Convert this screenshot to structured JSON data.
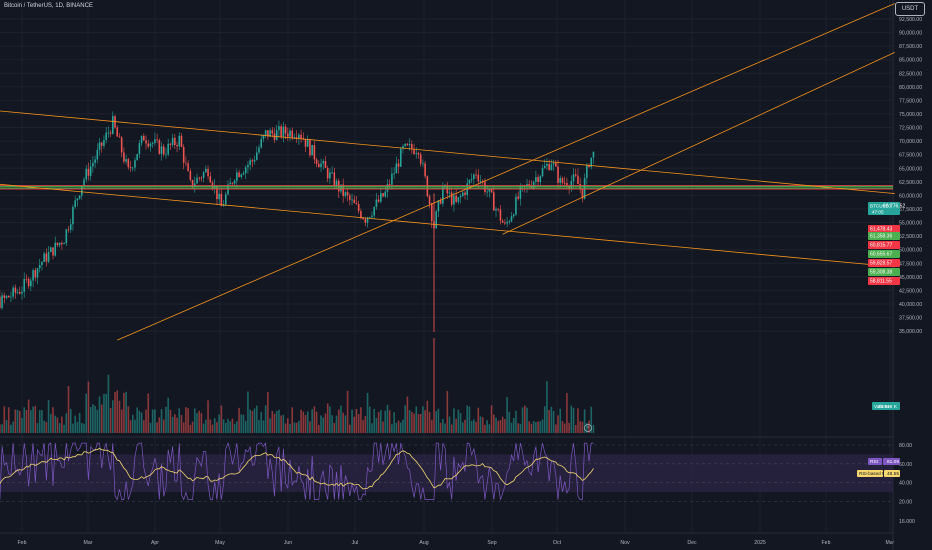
{
  "header": {
    "symbol_title": "Bitcoin / TetherUS, 1D, BINANCE",
    "currency_label": "USDT"
  },
  "colors": {
    "background": "#131722",
    "up": "#26a69a",
    "down": "#ef5350",
    "trendline": "#f7931a",
    "support": "#4caf50",
    "resistance": "#f23645",
    "rsi": "#7e57c2",
    "rsi_ma": "#f5d76e",
    "rsi_band": "#2a2445"
  },
  "chart_data": [
    {
      "type": "candlestick",
      "title": "Bitcoin / TetherUS, 1D, BINANCE",
      "x_ticks": [
        "Feb",
        "Mar",
        "Apr",
        "May",
        "Jun",
        "Jul",
        "Aug",
        "Sep",
        "Oct",
        "Nov",
        "Dec",
        "2025",
        "Feb",
        "Mar"
      ],
      "y_ticks": [
        "92,500.00",
        "90,000.00",
        "87,500.00",
        "85,000.00",
        "82,500.00",
        "80,000.00",
        "77,500.00",
        "75,000.00",
        "72,500.00",
        "70,000.00",
        "67,500.00",
        "65,000.00",
        "62,500.00",
        "60,000.00",
        "57,500.00",
        "55,000.00",
        "52,500.00",
        "50,000.00",
        "47,500.00",
        "45,000.00",
        "42,500.00",
        "40,000.00",
        "37,500.00",
        "35,000.00"
      ],
      "ylim": [
        33500,
        94500
      ],
      "price_labels": [
        {
          "label": "BTCUSDT",
          "value": "66,776.52",
          "sub": "47:05",
          "color": "#26a69a"
        },
        {
          "label": "",
          "value": "61,478.43",
          "color": "#f23645"
        },
        {
          "label": "",
          "value": "61,358.36",
          "color": "#4caf50"
        },
        {
          "label": "",
          "value": "60,815.77",
          "color": "#f23645"
        },
        {
          "label": "",
          "value": "60,655.67",
          "color": "#4caf50"
        },
        {
          "label": "",
          "value": "59,828.57",
          "color": "#f23645"
        },
        {
          "label": "",
          "value": "59,308.38",
          "color": "#4caf50"
        },
        {
          "label": "",
          "value": "58,811.55",
          "color": "#f23645"
        }
      ],
      "horizontal_levels": {
        "support": [
          61358,
          61000
        ],
        "resistance": [
          61478,
          60815
        ]
      },
      "trendlines_price": [
        {
          "from": [
            "2024-01-01",
            76000
          ],
          "to": [
            "2025-03-01",
            60000
          ]
        },
        {
          "from": [
            "2024-01-01",
            62500
          ],
          "to": [
            "2025-03-01",
            46500
          ]
        },
        {
          "from": [
            "2024-03-15",
            33000
          ],
          "to": [
            "2025-03-01",
            95000
          ]
        },
        {
          "from": [
            "2024-09-05",
            52500
          ],
          "to": [
            "2025-03-01",
            86000
          ]
        }
      ],
      "volume": {
        "label": "Volume",
        "value": "43.516 K"
      }
    },
    {
      "type": "line",
      "title": "RSI",
      "y_ticks": [
        "80.00",
        "60.00",
        "40.00",
        "20.00",
        "16.000"
      ],
      "ylim": [
        10,
        90
      ],
      "bands": [
        30,
        70
      ],
      "series": [
        {
          "name": "RSI",
          "value": "61.09"
        },
        {
          "name": "RSI-based MA",
          "value": "48.55"
        }
      ]
    }
  ]
}
